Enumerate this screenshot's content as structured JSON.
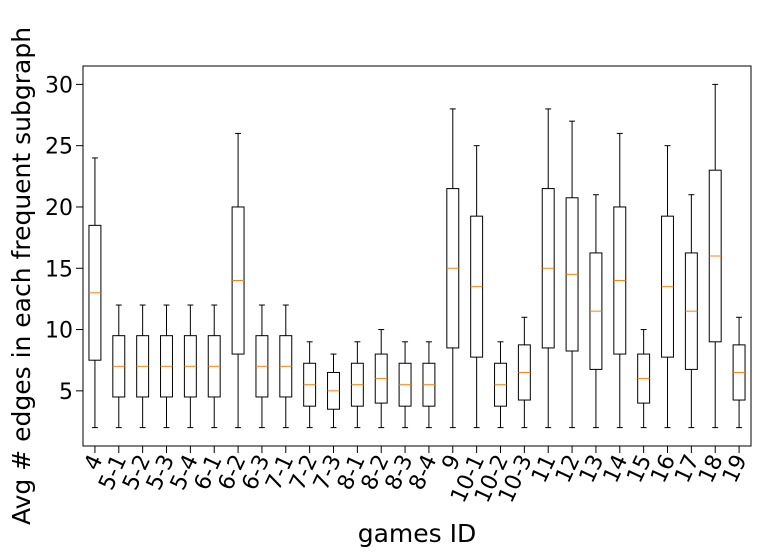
{
  "chart_data": {
    "type": "box",
    "title": "",
    "xlabel": "games ID",
    "ylabel": "Avg # edges in each frequent subgraph",
    "ylim": [
      0.5,
      31.5
    ],
    "yticks": [
      5,
      10,
      15,
      20,
      25,
      30
    ],
    "grid": false,
    "median_color": "#ff7f0e",
    "categories": [
      "4",
      "5-1",
      "5-2",
      "5-3",
      "5-4",
      "6-1",
      "6-2",
      "6-3",
      "7-1",
      "7-2",
      "7-3",
      "8-1",
      "8-2",
      "8-3",
      "8-4",
      "9",
      "10-1",
      "10-2",
      "10-3",
      "11",
      "12",
      "13",
      "14",
      "15",
      "16",
      "17",
      "18",
      "19"
    ],
    "boxes": [
      {
        "min": 2,
        "q1": 7.5,
        "median": 13,
        "q3": 18.5,
        "max": 24
      },
      {
        "min": 2,
        "q1": 4.5,
        "median": 7,
        "q3": 9.5,
        "max": 12
      },
      {
        "min": 2,
        "q1": 4.5,
        "median": 7,
        "q3": 9.5,
        "max": 12
      },
      {
        "min": 2,
        "q1": 4.5,
        "median": 7,
        "q3": 9.5,
        "max": 12
      },
      {
        "min": 2,
        "q1": 4.5,
        "median": 7,
        "q3": 9.5,
        "max": 12
      },
      {
        "min": 2,
        "q1": 4.5,
        "median": 7,
        "q3": 9.5,
        "max": 12
      },
      {
        "min": 2,
        "q1": 8,
        "median": 14,
        "q3": 20,
        "max": 26
      },
      {
        "min": 2,
        "q1": 4.5,
        "median": 7,
        "q3": 9.5,
        "max": 12
      },
      {
        "min": 2,
        "q1": 4.5,
        "median": 7,
        "q3": 9.5,
        "max": 12
      },
      {
        "min": 2,
        "q1": 3.75,
        "median": 5.5,
        "q3": 7.25,
        "max": 9
      },
      {
        "min": 2,
        "q1": 3.5,
        "median": 5,
        "q3": 6.5,
        "max": 8
      },
      {
        "min": 2,
        "q1": 3.75,
        "median": 5.5,
        "q3": 7.25,
        "max": 9
      },
      {
        "min": 2,
        "q1": 4,
        "median": 6,
        "q3": 8,
        "max": 10
      },
      {
        "min": 2,
        "q1": 3.75,
        "median": 5.5,
        "q3": 7.25,
        "max": 9
      },
      {
        "min": 2,
        "q1": 3.75,
        "median": 5.5,
        "q3": 7.25,
        "max": 9
      },
      {
        "min": 2,
        "q1": 8.5,
        "median": 15,
        "q3": 21.5,
        "max": 28
      },
      {
        "min": 2,
        "q1": 7.75,
        "median": 13.5,
        "q3": 19.25,
        "max": 25
      },
      {
        "min": 2,
        "q1": 3.75,
        "median": 5.5,
        "q3": 7.25,
        "max": 9
      },
      {
        "min": 2,
        "q1": 4.25,
        "median": 6.5,
        "q3": 8.75,
        "max": 11
      },
      {
        "min": 2,
        "q1": 8.5,
        "median": 15,
        "q3": 21.5,
        "max": 28
      },
      {
        "min": 2,
        "q1": 8.25,
        "median": 14.5,
        "q3": 20.75,
        "max": 27
      },
      {
        "min": 2,
        "q1": 6.75,
        "median": 11.5,
        "q3": 16.25,
        "max": 21
      },
      {
        "min": 2,
        "q1": 8,
        "median": 14,
        "q3": 20,
        "max": 26
      },
      {
        "min": 2,
        "q1": 4,
        "median": 6,
        "q3": 8,
        "max": 10
      },
      {
        "min": 2,
        "q1": 7.75,
        "median": 13.5,
        "q3": 19.25,
        "max": 25
      },
      {
        "min": 2,
        "q1": 6.75,
        "median": 11.5,
        "q3": 16.25,
        "max": 21
      },
      {
        "min": 2,
        "q1": 9,
        "median": 16,
        "q3": 23,
        "max": 30
      },
      {
        "min": 2,
        "q1": 4.25,
        "median": 6.5,
        "q3": 8.75,
        "max": 11
      }
    ]
  }
}
